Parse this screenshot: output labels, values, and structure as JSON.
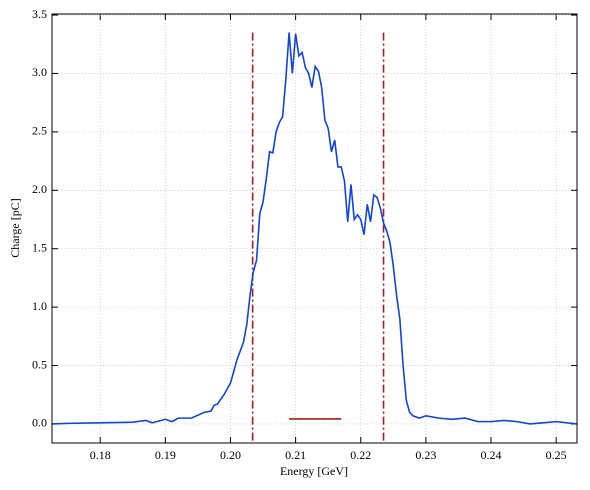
{
  "chart_data": {
    "type": "line",
    "xlabel": "Energy [GeV]",
    "ylabel": "Charge [pC]",
    "xlim": [
      0.1726,
      0.2532
    ],
    "ylim": [
      -0.163,
      3.509
    ],
    "xticks": [
      0.18,
      0.19,
      {
        "value": 0.2,
        "label": "0.20"
      },
      0.21,
      0.22,
      0.23,
      0.24,
      0.25
    ],
    "yticks": [
      {
        "value": 0,
        "label": "0.0"
      },
      0.5,
      {
        "value": 1,
        "label": "1.0"
      },
      1.5,
      {
        "value": 2,
        "label": "2.0"
      },
      2.5,
      {
        "value": 3,
        "label": "3.0"
      },
      3.5
    ],
    "grid": true,
    "x": [
      0.1726,
      0.175,
      0.18,
      0.185,
      0.187,
      0.188,
      0.19,
      0.191,
      0.192,
      0.194,
      0.196,
      0.197,
      0.1975,
      0.198,
      0.199,
      0.2,
      0.201,
      0.202,
      0.2025,
      0.203,
      0.2035,
      0.204,
      0.2045,
      0.205,
      0.2055,
      0.206,
      0.2065,
      0.207,
      0.2075,
      0.208,
      0.2085,
      0.209,
      0.2095,
      0.21,
      0.2105,
      0.211,
      0.2115,
      0.212,
      0.2125,
      0.213,
      0.2135,
      0.214,
      0.2145,
      0.215,
      0.2155,
      0.216,
      0.2165,
      0.217,
      0.2175,
      0.218,
      0.2185,
      0.219,
      0.2195,
      0.22,
      0.2205,
      0.221,
      0.2215,
      0.222,
      0.2225,
      0.223,
      0.2235,
      0.224,
      0.2245,
      0.225,
      0.2255,
      0.226,
      0.2265,
      0.227,
      0.2275,
      0.228,
      0.229,
      0.23,
      0.232,
      0.234,
      0.236,
      0.238,
      0.24,
      0.242,
      0.244,
      0.246,
      0.248,
      0.25,
      0.2532
    ],
    "series": [
      {
        "color": "#1144dd",
        "values": [
          0.0,
          0.005,
          0.01,
          0.015,
          0.03,
          0.01,
          0.04,
          0.02,
          0.05,
          0.05,
          0.1,
          0.11,
          0.16,
          0.17,
          0.25,
          0.35,
          0.55,
          0.7,
          0.85,
          1.1,
          1.3,
          1.4,
          1.8,
          1.9,
          2.1,
          2.33,
          2.32,
          2.5,
          2.58,
          2.63,
          2.95,
          3.35,
          3.0,
          3.34,
          3.15,
          3.18,
          3.05,
          3.0,
          2.88,
          3.06,
          3.02,
          2.88,
          2.6,
          2.53,
          2.33,
          2.43,
          2.2,
          2.2,
          2.08,
          1.73,
          2.05,
          1.75,
          1.79,
          1.75,
          1.62,
          1.88,
          1.73,
          1.96,
          1.94,
          1.85,
          1.72,
          1.65,
          1.55,
          1.35,
          1.1,
          0.9,
          0.5,
          0.2,
          0.1,
          0.07,
          0.05,
          0.07,
          0.05,
          0.04,
          0.05,
          0.02,
          0.02,
          0.03,
          0.02,
          0.0,
          0.01,
          0.02,
          0.0
        ]
      }
    ],
    "vlines": {
      "x": [
        0.2034,
        0.2235
      ],
      "ymax": 3.35,
      "color": "#aa1a1a"
    },
    "hline": {
      "x": [
        0.209,
        0.217
      ],
      "y": 0.043,
      "color": "#aa1a1a"
    }
  }
}
